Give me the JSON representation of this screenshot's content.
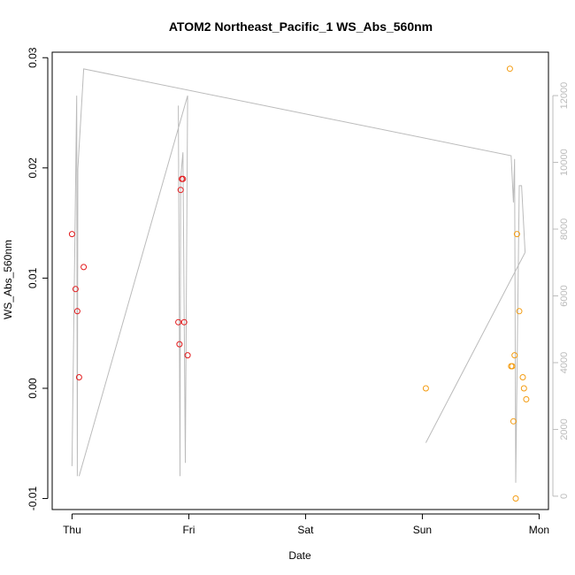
{
  "chart_data": {
    "type": "scatter",
    "title": "ATOM2 Northeast_Pacific_1 WS_Abs_560nm",
    "xlabel": "Date",
    "ylabel": "WS_Abs_560nm",
    "x_ticks": [
      "Thu",
      "Fri",
      "Sat",
      "Sun",
      "Mon"
    ],
    "x_tick_days": [
      0,
      1,
      2,
      3,
      4
    ],
    "xlim": [
      -0.17,
      4.08
    ],
    "ylim": [
      -0.011,
      0.0305
    ],
    "y_ticks": [
      -0.01,
      0.0,
      0.01,
      0.02,
      0.03
    ],
    "y_tick_labels": [
      "-0.01",
      "0.00",
      "0.01",
      "0.02",
      "0.03"
    ],
    "y2lim": [
      -400,
      13300
    ],
    "y2_ticks": [
      0,
      2000,
      4000,
      6000,
      8000,
      10000,
      12000
    ],
    "y2_tick_labels": [
      "0",
      "2000",
      "4000",
      "6000",
      "8000",
      "10000",
      "12000"
    ],
    "colors": {
      "series_1": "#e31a1c",
      "series_2": "#f39c12",
      "secondary_line": "#bbbbbb",
      "axis": "#000000",
      "axis2": "#bbbbbb"
    },
    "series": [
      {
        "color": "#e31a1c",
        "points": [
          {
            "x": 0.0,
            "y": 0.014
          },
          {
            "x": 0.03,
            "y": 0.009
          },
          {
            "x": 0.045,
            "y": 0.007
          },
          {
            "x": 0.06,
            "y": 0.001
          },
          {
            "x": 0.1,
            "y": 0.011
          },
          {
            "x": 0.91,
            "y": 0.006
          },
          {
            "x": 0.92,
            "y": 0.004
          },
          {
            "x": 0.93,
            "y": 0.018
          },
          {
            "x": 0.94,
            "y": 0.019
          },
          {
            "x": 0.95,
            "y": 0.019
          },
          {
            "x": 0.96,
            "y": 0.006
          },
          {
            "x": 0.99,
            "y": 0.003
          }
        ]
      },
      {
        "color": "#f39c12",
        "points": [
          {
            "x": 3.03,
            "y": 0.0
          },
          {
            "x": 3.75,
            "y": 0.029
          },
          {
            "x": 3.76,
            "y": 0.002
          },
          {
            "x": 3.77,
            "y": 0.002
          },
          {
            "x": 3.78,
            "y": -0.003
          },
          {
            "x": 3.79,
            "y": 0.003
          },
          {
            "x": 3.8,
            "y": -0.01
          },
          {
            "x": 3.81,
            "y": 0.014
          },
          {
            "x": 3.83,
            "y": 0.007
          },
          {
            "x": 3.86,
            "y": 0.001
          },
          {
            "x": 3.87,
            "y": 0.0
          },
          {
            "x": 3.89,
            "y": -0.001
          }
        ]
      }
    ],
    "secondary_series": {
      "axis": "right",
      "color": "#bbbbbb",
      "points": [
        {
          "x": 0.0,
          "y": 900
        },
        {
          "x": 0.04,
          "y": 12000
        },
        {
          "x": 0.045,
          "y": 600
        },
        {
          "x": 0.05,
          "y": 9800
        },
        {
          "x": 0.1,
          "y": 12800
        },
        {
          "x": 0.99,
          "y": 12000
        },
        {
          "x": 0.97,
          "y": 900
        },
        {
          "x": 0.95,
          "y": 10300
        },
        {
          "x": 0.93,
          "y": 9500
        },
        {
          "x": 0.91,
          "y": 11700
        },
        {
          "x": 0.92,
          "y": 600
        },
        {
          "x": 0.925,
          "y": 9500
        },
        {
          "x": 0.06,
          "y": 600
        },
        {
          "x": 0.0,
          "y": 900
        }
      ],
      "segments": [
        [
          {
            "x": 0.0,
            "y": 900
          },
          {
            "x": 0.04,
            "y": 12000
          },
          {
            "x": 0.045,
            "y": 600
          },
          {
            "x": 0.05,
            "y": 9800
          },
          {
            "x": 0.1,
            "y": 12800
          },
          {
            "x": 3.76,
            "y": 10200
          },
          {
            "x": 3.78,
            "y": 8800
          },
          {
            "x": 3.79,
            "y": 10100
          },
          {
            "x": 3.8,
            "y": 400
          },
          {
            "x": 3.83,
            "y": 9300
          },
          {
            "x": 3.85,
            "y": 9300
          },
          {
            "x": 3.88,
            "y": 7300
          }
        ],
        [
          {
            "x": 0.06,
            "y": 600
          },
          {
            "x": 0.99,
            "y": 12000
          },
          {
            "x": 0.97,
            "y": 1000
          },
          {
            "x": 0.95,
            "y": 10300
          },
          {
            "x": 0.93,
            "y": 9500
          },
          {
            "x": 0.925,
            "y": 600
          },
          {
            "x": 0.91,
            "y": 11700
          }
        ],
        [
          {
            "x": 3.03,
            "y": 1600
          },
          {
            "x": 3.88,
            "y": 7300
          }
        ]
      ]
    },
    "grid": false,
    "legend": "none"
  }
}
